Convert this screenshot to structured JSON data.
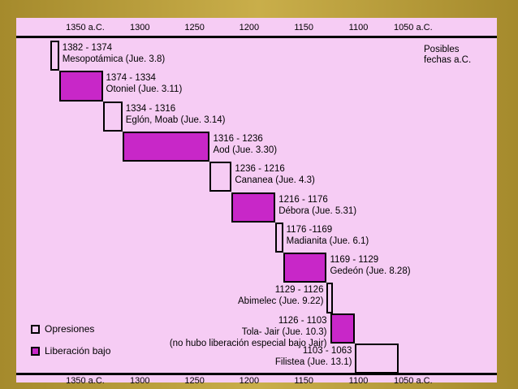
{
  "axis_labels": [
    "1350 a.C.",
    "1300",
    "1250",
    "1200",
    "1150",
    "1100",
    "1050 a.C."
  ],
  "axis_years": [
    1350,
    1300,
    1250,
    1200,
    1150,
    1100,
    1050
  ],
  "note": [
    "Posibles",
    "fechas a.C."
  ],
  "legend": {
    "oppression": "Opresiones",
    "liberation": "Liberación bajo"
  },
  "colors": {
    "oppression": "#f6ccf4",
    "liberation": "#c827c8"
  },
  "chart_data": {
    "type": "gantt",
    "periods": [
      {
        "start": 1382,
        "end": 1374,
        "kind": "oppression",
        "range": "1382 - 1374",
        "name": "Mesopotámica (Jue. 3.8)"
      },
      {
        "start": 1374,
        "end": 1334,
        "kind": "liberation",
        "range": "1374 - 1334",
        "name": "Otoniel (Jue. 3.11)"
      },
      {
        "start": 1334,
        "end": 1316,
        "kind": "oppression",
        "range": "1334 - 1316",
        "name": "Eglón, Moab (Jue. 3.14)"
      },
      {
        "start": 1316,
        "end": 1236,
        "kind": "liberation",
        "range": "1316 - 1236",
        "name": "Aod (Jue. 3.30)"
      },
      {
        "start": 1236,
        "end": 1216,
        "kind": "oppression",
        "range": "1236 - 1216",
        "name": "Cananea (Jue. 4.3)"
      },
      {
        "start": 1216,
        "end": 1176,
        "kind": "liberation",
        "range": "1216 - 1176",
        "name": "Débora (Jue. 5.31)"
      },
      {
        "start": 1176,
        "end": 1169,
        "kind": "oppression",
        "range": "1176 -1169",
        "name": "Madianita (Jue. 6.1)"
      },
      {
        "start": 1169,
        "end": 1129,
        "kind": "liberation",
        "range": "1169 - 1129",
        "name": "Gedeón (Jue. 8.28)"
      },
      {
        "start": 1129,
        "end": 1126,
        "kind": "oppression",
        "range": "1129 - 1126",
        "name": "Abimelec (Jue. 9.22)"
      },
      {
        "start": 1126,
        "end": 1103,
        "kind": "liberation",
        "range": "1126 - 1103",
        "name": "Tola- Jair (Jue. 10.3)",
        "extra": "(no hubo liberación especial bajo Jair)"
      },
      {
        "start": 1103,
        "end": 1063,
        "kind": "oppression",
        "range": "1103 - 1063",
        "name": "Filistea (Jue. 13.1)"
      }
    ]
  }
}
